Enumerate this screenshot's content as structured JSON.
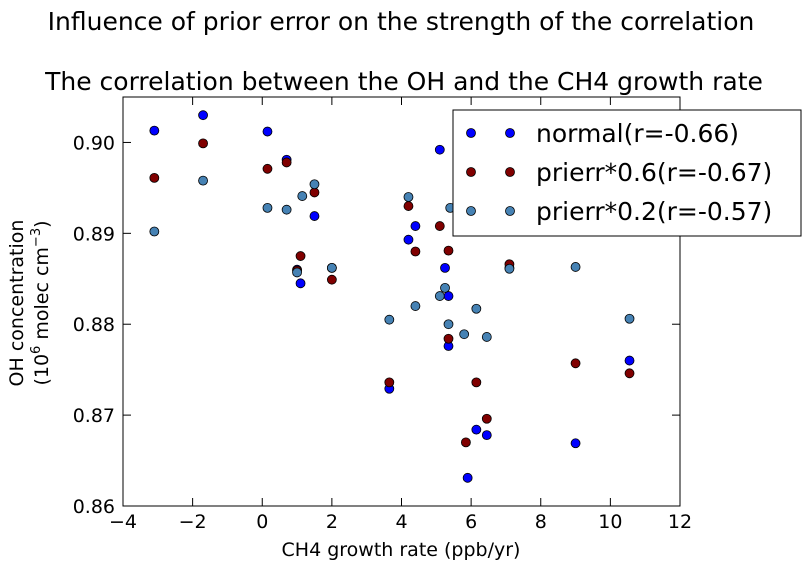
{
  "chart_data": {
    "type": "scatter",
    "suptitle": "Influence of prior error on the strength of the correlation",
    "title": "The correlation between the OH and the CH4 growth rate",
    "xlabel": "CH4 growth rate (ppb/yr)",
    "ylabel_line1": "OH concentration",
    "ylabel_line2_pre": "(10",
    "ylabel_line2_exp1": "6",
    "ylabel_line2_mid": " molec cm",
    "ylabel_line2_exp2": "−3",
    "ylabel_line2_post": ")",
    "xlim": [
      -4,
      12
    ],
    "ylim": [
      0.86,
      0.905
    ],
    "xticks": [
      -4,
      -2,
      0,
      2,
      4,
      6,
      8,
      10,
      12
    ],
    "xtick_labels": [
      "−4",
      "−2",
      "0",
      "2",
      "4",
      "6",
      "8",
      "10",
      "12"
    ],
    "yticks": [
      0.86,
      0.87,
      0.88,
      0.89,
      0.9
    ],
    "ytick_labels": [
      "0.86",
      "0.87",
      "0.88",
      "0.89",
      "0.90"
    ],
    "grid": false,
    "legend_position": "top-right",
    "series": [
      {
        "name": "normal(r=-0.66)",
        "color": "#0000ff",
        "points": [
          [
            -3.1,
            0.9013
          ],
          [
            -1.7,
            0.903
          ],
          [
            0.15,
            0.9012
          ],
          [
            0.7,
            0.8981
          ],
          [
            1.0,
            0.886
          ],
          [
            1.1,
            0.8845
          ],
          [
            1.5,
            0.8919
          ],
          [
            2.0,
            0.8862
          ],
          [
            3.65,
            0.8729
          ],
          [
            4.2,
            0.8893
          ],
          [
            4.4,
            0.8908
          ],
          [
            5.1,
            0.8992
          ],
          [
            5.25,
            0.8862
          ],
          [
            5.35,
            0.8831
          ],
          [
            5.35,
            0.8776
          ],
          [
            5.9,
            0.8631
          ],
          [
            6.15,
            0.8684
          ],
          [
            6.45,
            0.8678
          ],
          [
            7.1,
            0.8862
          ],
          [
            9.0,
            0.8669
          ],
          [
            10.55,
            0.876
          ]
        ]
      },
      {
        "name": "prierr*0.6(r=-0.67)",
        "color": "#800000",
        "points": [
          [
            -3.1,
            0.8961
          ],
          [
            -1.7,
            0.8999
          ],
          [
            0.15,
            0.8971
          ],
          [
            0.7,
            0.8978
          ],
          [
            1.0,
            0.8859
          ],
          [
            1.1,
            0.8875
          ],
          [
            1.5,
            0.8945
          ],
          [
            2.0,
            0.8849
          ],
          [
            3.65,
            0.8736
          ],
          [
            4.2,
            0.893
          ],
          [
            4.4,
            0.888
          ],
          [
            5.1,
            0.8908
          ],
          [
            5.35,
            0.8881
          ],
          [
            5.35,
            0.8784
          ],
          [
            5.85,
            0.867
          ],
          [
            6.15,
            0.8736
          ],
          [
            6.45,
            0.8696
          ],
          [
            7.1,
            0.8866
          ],
          [
            9.0,
            0.8757
          ],
          [
            10.55,
            0.8746
          ]
        ]
      },
      {
        "name": "prierr*0.2(r=-0.57)",
        "color": "#4682b4",
        "points": [
          [
            -3.1,
            0.8902
          ],
          [
            -1.7,
            0.8958
          ],
          [
            0.15,
            0.8928
          ],
          [
            0.7,
            0.8926
          ],
          [
            1.0,
            0.8857
          ],
          [
            1.15,
            0.8941
          ],
          [
            1.5,
            0.8954
          ],
          [
            2.0,
            0.8862
          ],
          [
            3.65,
            0.8805
          ],
          [
            4.2,
            0.894
          ],
          [
            4.4,
            0.882
          ],
          [
            5.1,
            0.8831
          ],
          [
            5.25,
            0.884
          ],
          [
            5.35,
            0.88
          ],
          [
            5.4,
            0.8928
          ],
          [
            5.8,
            0.8789
          ],
          [
            6.15,
            0.8817
          ],
          [
            6.45,
            0.8786
          ],
          [
            7.1,
            0.8861
          ],
          [
            9.0,
            0.8863
          ],
          [
            10.55,
            0.8806
          ]
        ]
      }
    ]
  }
}
